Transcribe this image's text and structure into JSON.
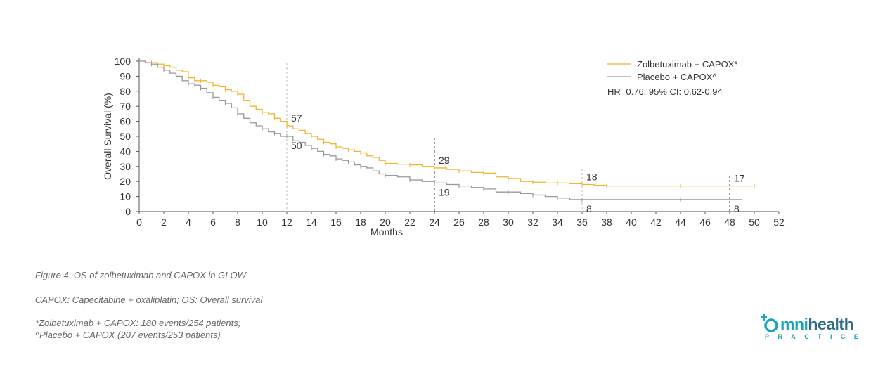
{
  "chart_data": {
    "type": "line",
    "xlabel": "Months",
    "ylabel": "Overall Survival (%)",
    "xlim": [
      0,
      52
    ],
    "ylim": [
      0,
      100
    ],
    "xticks": [
      0,
      2,
      4,
      6,
      8,
      10,
      12,
      14,
      16,
      18,
      20,
      22,
      24,
      26,
      28,
      30,
      32,
      34,
      36,
      38,
      40,
      42,
      44,
      46,
      48,
      50,
      52
    ],
    "yticks": [
      0,
      10,
      20,
      30,
      40,
      50,
      60,
      70,
      80,
      90,
      100
    ],
    "grid": false,
    "legend_position": "top-right",
    "series": [
      {
        "name": "Zolbetuximab + CAPOX*",
        "color": "#f2b531",
        "points": [
          [
            0,
            100
          ],
          [
            0.5,
            99
          ],
          [
            1,
            99
          ],
          [
            1.5,
            98
          ],
          [
            2,
            97
          ],
          [
            2.5,
            96
          ],
          [
            3,
            94
          ],
          [
            3.5,
            93
          ],
          [
            4,
            89
          ],
          [
            4.5,
            87
          ],
          [
            5,
            87
          ],
          [
            5.5,
            86
          ],
          [
            6,
            84
          ],
          [
            6.5,
            83
          ],
          [
            7,
            81
          ],
          [
            7.5,
            80
          ],
          [
            8,
            78
          ],
          [
            8.5,
            74
          ],
          [
            9,
            70
          ],
          [
            9.5,
            68
          ],
          [
            10,
            66
          ],
          [
            10.5,
            65
          ],
          [
            11,
            62
          ],
          [
            11.5,
            60
          ],
          [
            12,
            57
          ],
          [
            12.5,
            55
          ],
          [
            13,
            54
          ],
          [
            13.5,
            52
          ],
          [
            14,
            50
          ],
          [
            14.5,
            48
          ],
          [
            15,
            46
          ],
          [
            15.5,
            45
          ],
          [
            16,
            43
          ],
          [
            16.5,
            42
          ],
          [
            17,
            41
          ],
          [
            17.5,
            40
          ],
          [
            18,
            39
          ],
          [
            18.5,
            37
          ],
          [
            19,
            36
          ],
          [
            19.5,
            34
          ],
          [
            20,
            32
          ],
          [
            21,
            31.5
          ],
          [
            22,
            31
          ],
          [
            23,
            30
          ],
          [
            24,
            29
          ],
          [
            25,
            28
          ],
          [
            26,
            27
          ],
          [
            27,
            26
          ],
          [
            28,
            25.5
          ],
          [
            29,
            23
          ],
          [
            30,
            22
          ],
          [
            31,
            20
          ],
          [
            32,
            19.5
          ],
          [
            33,
            19
          ],
          [
            34,
            19
          ],
          [
            35,
            18.5
          ],
          [
            36,
            18
          ],
          [
            37,
            17.5
          ],
          [
            38,
            17
          ],
          [
            40,
            17
          ],
          [
            44,
            17
          ],
          [
            48,
            17
          ],
          [
            50,
            17
          ]
        ],
        "end_labels": [
          {
            "x": 12,
            "text": "57"
          },
          {
            "x": 24,
            "text": "29"
          },
          {
            "x": 36,
            "text": "18"
          },
          {
            "x": 48,
            "text": "17"
          }
        ]
      },
      {
        "name": "Placebo + CAPOX^",
        "color": "#999999",
        "points": [
          [
            0,
            100
          ],
          [
            0.5,
            99
          ],
          [
            1,
            98
          ],
          [
            1.5,
            96
          ],
          [
            2,
            94
          ],
          [
            2.5,
            92
          ],
          [
            3,
            90
          ],
          [
            3.5,
            87
          ],
          [
            4,
            85
          ],
          [
            4.5,
            84
          ],
          [
            5,
            82
          ],
          [
            5.5,
            79
          ],
          [
            6,
            76
          ],
          [
            6.5,
            74
          ],
          [
            7,
            72
          ],
          [
            7.5,
            69
          ],
          [
            8,
            65
          ],
          [
            8.5,
            62
          ],
          [
            9,
            59
          ],
          [
            9.5,
            57
          ],
          [
            10,
            55
          ],
          [
            10.5,
            53
          ],
          [
            11,
            52
          ],
          [
            11.5,
            50
          ],
          [
            12,
            50
          ],
          [
            12.5,
            47
          ],
          [
            13,
            46
          ],
          [
            13.5,
            44
          ],
          [
            14,
            42
          ],
          [
            14.5,
            40
          ],
          [
            15,
            38
          ],
          [
            15.5,
            37
          ],
          [
            16,
            35
          ],
          [
            16.5,
            34
          ],
          [
            17,
            33
          ],
          [
            17.5,
            31
          ],
          [
            18,
            30
          ],
          [
            18.5,
            29
          ],
          [
            19,
            27
          ],
          [
            19.5,
            25
          ],
          [
            20,
            24
          ],
          [
            21,
            23
          ],
          [
            22,
            21
          ],
          [
            23,
            20
          ],
          [
            24,
            19
          ],
          [
            25,
            18
          ],
          [
            26,
            17
          ],
          [
            27,
            16
          ],
          [
            28,
            15
          ],
          [
            29,
            13
          ],
          [
            30,
            13
          ],
          [
            31,
            12
          ],
          [
            32,
            11
          ],
          [
            33,
            10
          ],
          [
            34,
            9
          ],
          [
            35,
            8
          ],
          [
            36,
            8
          ],
          [
            40,
            8
          ],
          [
            44,
            8
          ],
          [
            48,
            8
          ],
          [
            49,
            8
          ]
        ],
        "end_labels": [
          {
            "x": 12,
            "text": "50"
          },
          {
            "x": 24,
            "text": "19"
          },
          {
            "x": 36,
            "text": "8"
          },
          {
            "x": 48,
            "text": "8"
          }
        ]
      }
    ],
    "reference_lines_x": [
      12,
      24,
      36,
      48
    ],
    "annotation": "HR=0.76; 95% CI: 0.62-0.94"
  },
  "captions": {
    "figure": "Figure 4. OS of zolbetuximab and CAPOX in GLOW",
    "abbreviations": "CAPOX: Capecitabine + oxaliplatin; OS: Overall survival",
    "note1": "*Zolbetuximab + CAPOX: 180 events/254 patients;",
    "note2": "^Placebo + CAPOX (207 events/253 patients)"
  },
  "logo": {
    "omni": "mni",
    "health": "health",
    "sub": "PRACTICE",
    "colors": {
      "teal": "#1aa5b8",
      "dark": "#2c6f86"
    }
  }
}
